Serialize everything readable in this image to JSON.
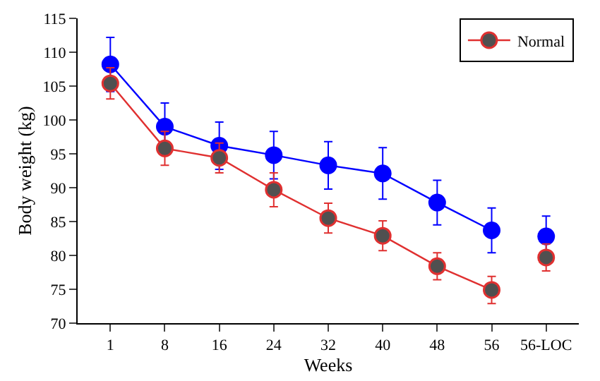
{
  "chart_data": {
    "type": "line",
    "xlabel": "Weeks",
    "ylabel": "Body weight (kg)",
    "categories": [
      "1",
      "8",
      "16",
      "24",
      "32",
      "40",
      "48",
      "56",
      "56-LOC"
    ],
    "series": [
      {
        "color": "#0000ff",
        "values": [
          108.2,
          99.0,
          96.2,
          94.8,
          93.3,
          92.1,
          87.8,
          83.7,
          null
        ],
        "errors": [
          4,
          3.5,
          3.5,
          3.5,
          3.5,
          3.8,
          3.3,
          3.3,
          null
        ]
      },
      {
        "name": "Normal",
        "color": "#e03030",
        "values": [
          105.4,
          95.8,
          94.4,
          89.7,
          85.5,
          82.9,
          78.4,
          74.9,
          null
        ],
        "errors": [
          2.3,
          2.5,
          2.2,
          2.5,
          2.2,
          2.2,
          2,
          2,
          null
        ]
      },
      {
        "type": "scatter",
        "color": "#0000ff",
        "values": [
          null,
          null,
          null,
          null,
          null,
          null,
          null,
          null,
          82.8
        ],
        "errors": [
          null,
          null,
          null,
          null,
          null,
          null,
          null,
          null,
          3
        ]
      },
      {
        "type": "scatter",
        "color": "#e03030",
        "values": [
          null,
          null,
          null,
          null,
          null,
          null,
          null,
          null,
          79.7
        ],
        "errors": [
          null,
          null,
          null,
          null,
          null,
          null,
          null,
          null,
          2
        ]
      }
    ],
    "ylim": [
      70,
      115
    ],
    "yticks": [
      70,
      75,
      80,
      85,
      90,
      95,
      100,
      105,
      110,
      115
    ],
    "legend": "top right",
    "marker": "circle",
    "line_style": "solid"
  }
}
